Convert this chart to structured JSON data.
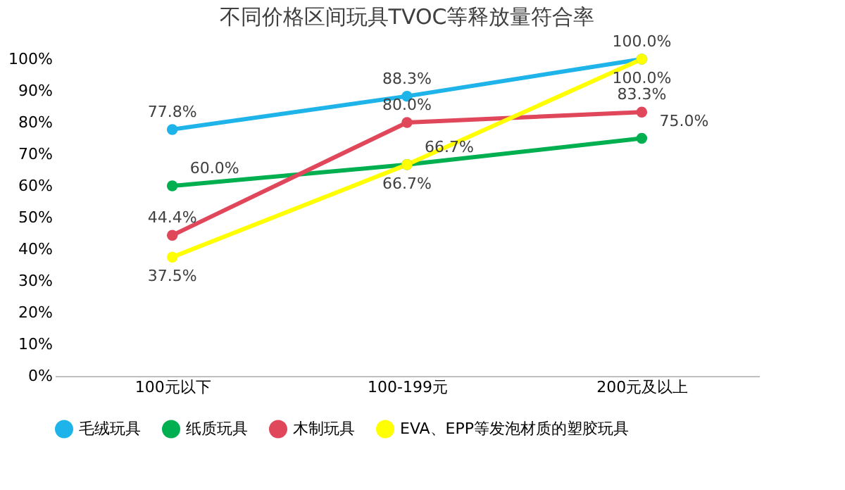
{
  "chart_data": {
    "type": "line",
    "title": "不同价格区间玩具TVOC等释放量符合率",
    "categories": [
      "100元以下",
      "100-199元",
      "200元及以上"
    ],
    "series": [
      {
        "name": "毛绒玩具",
        "color": "#1eb4ea",
        "values": [
          77.8,
          88.3,
          100.0
        ],
        "value_labels": [
          "77.8%",
          "88.3%",
          "100.0%"
        ]
      },
      {
        "name": "纸质玩具",
        "color": "#00b050",
        "values": [
          60.0,
          66.7,
          75.0
        ],
        "value_labels": [
          "60.0%",
          "66.7%",
          "75.0%"
        ]
      },
      {
        "name": "木制玩具",
        "color": "#e0475b",
        "values": [
          44.4,
          80.0,
          83.3
        ],
        "value_labels": [
          "44.4%",
          "80.0%",
          "83.3%"
        ]
      },
      {
        "name": "EVA、EPP等发泡材质的塑胶玩具",
        "color": "#ffff00",
        "values": [
          37.5,
          66.7,
          100.0
        ],
        "value_labels": [
          "37.5%",
          "66.7%",
          "100.0%"
        ]
      }
    ],
    "ylim": [
      0,
      100
    ],
    "yticks": [
      {
        "value": 0,
        "label": "0%"
      },
      {
        "value": 10,
        "label": "10%"
      },
      {
        "value": 20,
        "label": "20%"
      },
      {
        "value": 30,
        "label": "30%"
      },
      {
        "value": 40,
        "label": "40%"
      },
      {
        "value": 50,
        "label": "50%"
      },
      {
        "value": 60,
        "label": "60%"
      },
      {
        "value": 70,
        "label": "70%"
      },
      {
        "value": 80,
        "label": "80%"
      },
      {
        "value": 90,
        "label": "90%"
      },
      {
        "value": 100,
        "label": "100%"
      }
    ],
    "legend": "bottom",
    "marker": "circle",
    "line_style": "solid",
    "grid": false
  }
}
